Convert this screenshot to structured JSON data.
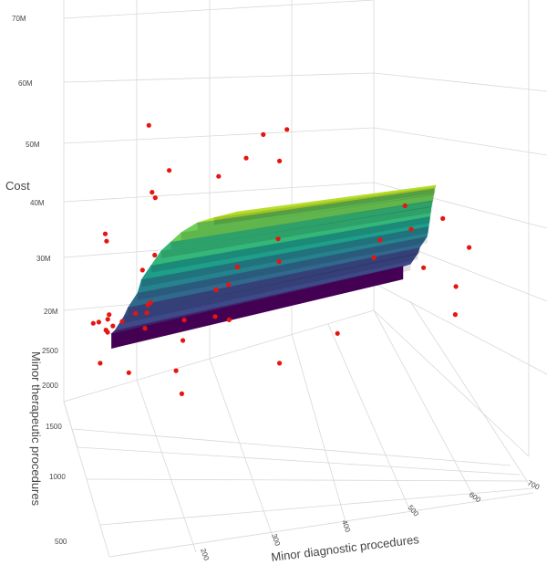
{
  "chart_data": {
    "type": "surface3d",
    "title": "",
    "colorscale": "viridis",
    "point_color": "#e8140f",
    "axes": {
      "x": {
        "label": "Minor diagnostic procedures",
        "ticks": [
          "200",
          "300",
          "400",
          "500",
          "600",
          "700"
        ]
      },
      "y": {
        "label": "Minor therapeutic procedures",
        "ticks": [
          "500",
          "1000",
          "1500",
          "2000",
          "2500"
        ]
      },
      "z": {
        "label": "Cost",
        "ticks": [
          "20M",
          "30M",
          "40M",
          "50M",
          "60M",
          "70M"
        ]
      }
    },
    "surface_rows": [
      {
        "y": 2200,
        "x_min": 150,
        "x_max": 690,
        "z": 20
      },
      {
        "y": 2100,
        "x_min": 150,
        "x_max": 690,
        "z": 22
      },
      {
        "y": 2000,
        "x_min": 160,
        "x_max": 690,
        "z": 26
      },
      {
        "y": 1900,
        "x_min": 160,
        "x_max": 680,
        "z": 29
      },
      {
        "y": 1800,
        "x_min": 170,
        "x_max": 680,
        "z": 33
      },
      {
        "y": 1700,
        "x_min": 170,
        "x_max": 670,
        "z": 37
      },
      {
        "y": 1600,
        "x_min": 180,
        "x_max": 660,
        "z": 41
      },
      {
        "y": 1500,
        "x_min": 190,
        "x_max": 650,
        "z": 45
      },
      {
        "y": 1400,
        "x_min": 200,
        "x_max": 640,
        "z": 48
      },
      {
        "y": 1300,
        "x_min": 210,
        "x_max": 630,
        "z": 51
      },
      {
        "y": 1200,
        "x_min": 230,
        "x_max": 620,
        "z": 54
      },
      {
        "y": 1100,
        "x_min": 250,
        "x_max": 610,
        "z": 56
      },
      {
        "y": 1000,
        "x_min": 280,
        "x_max": 600,
        "z": 58
      }
    ],
    "points": [
      {
        "x": 150,
        "y": 2300,
        "z": 19
      },
      {
        "x": 160,
        "y": 2400,
        "z": 21
      },
      {
        "x": 170,
        "y": 2200,
        "z": 22
      },
      {
        "x": 180,
        "y": 2000,
        "z": 26
      },
      {
        "x": 200,
        "y": 1900,
        "z": 29
      },
      {
        "x": 200,
        "y": 2100,
        "z": 33
      },
      {
        "x": 260,
        "y": 1900,
        "z": 24
      },
      {
        "x": 300,
        "y": 1700,
        "z": 32
      },
      {
        "x": 330,
        "y": 1800,
        "z": 31
      },
      {
        "x": 290,
        "y": 1600,
        "z": 28
      },
      {
        "x": 320,
        "y": 1500,
        "z": 39
      },
      {
        "x": 340,
        "y": 1900,
        "z": 22
      },
      {
        "x": 380,
        "y": 1400,
        "z": 45
      },
      {
        "x": 400,
        "y": 1600,
        "z": 37
      },
      {
        "x": 470,
        "y": 1300,
        "z": 24
      },
      {
        "x": 500,
        "y": 1000,
        "z": 44
      },
      {
        "x": 520,
        "y": 1100,
        "z": 46
      },
      {
        "x": 560,
        "y": 1000,
        "z": 49
      },
      {
        "x": 540,
        "y": 900,
        "z": 56
      },
      {
        "x": 600,
        "y": 900,
        "z": 52
      },
      {
        "x": 230,
        "y": 1700,
        "z": 17
      },
      {
        "x": 220,
        "y": 2300,
        "z": 18
      },
      {
        "x": 240,
        "y": 2500,
        "z": 18
      },
      {
        "x": 250,
        "y": 2600,
        "z": 18
      },
      {
        "x": 170,
        "y": 2600,
        "z": 33
      },
      {
        "x": 160,
        "y": 2500,
        "z": 36
      },
      {
        "x": 200,
        "y": 1800,
        "z": 40
      },
      {
        "x": 180,
        "y": 1500,
        "z": 56
      },
      {
        "x": 190,
        "y": 1300,
        "z": 64
      },
      {
        "x": 280,
        "y": 1400,
        "z": 60
      },
      {
        "x": 150,
        "y": 1200,
        "z": 75
      },
      {
        "x": 310,
        "y": 1200,
        "z": 66
      },
      {
        "x": 330,
        "y": 1100,
        "z": 72
      },
      {
        "x": 360,
        "y": 1000,
        "z": 74
      },
      {
        "x": 340,
        "y": 900,
        "z": 69
      },
      {
        "x": 210,
        "y": 2000,
        "z": 50
      },
      {
        "x": 170,
        "y": 2800,
        "z": 14
      },
      {
        "x": 190,
        "y": 2700,
        "z": 14
      },
      {
        "x": 300,
        "y": 2400,
        "z": 12
      },
      {
        "x": 420,
        "y": 1800,
        "z": 12
      },
      {
        "x": 130,
        "y": 2000,
        "z": 26
      },
      {
        "x": 130,
        "y": 2400,
        "z": 20
      },
      {
        "x": 140,
        "y": 2200,
        "z": 21
      },
      {
        "x": 110,
        "y": 1900,
        "z": 19
      },
      {
        "x": 240,
        "y": 1700,
        "z": 12
      },
      {
        "x": 620,
        "y": 900,
        "z": 30
      },
      {
        "x": 610,
        "y": 800,
        "z": 38
      },
      {
        "x": 620,
        "y": 700,
        "z": 48
      },
      {
        "x": 580,
        "y": 1000,
        "z": 40
      },
      {
        "x": 230,
        "y": 2800,
        "z": 2
      }
    ]
  }
}
